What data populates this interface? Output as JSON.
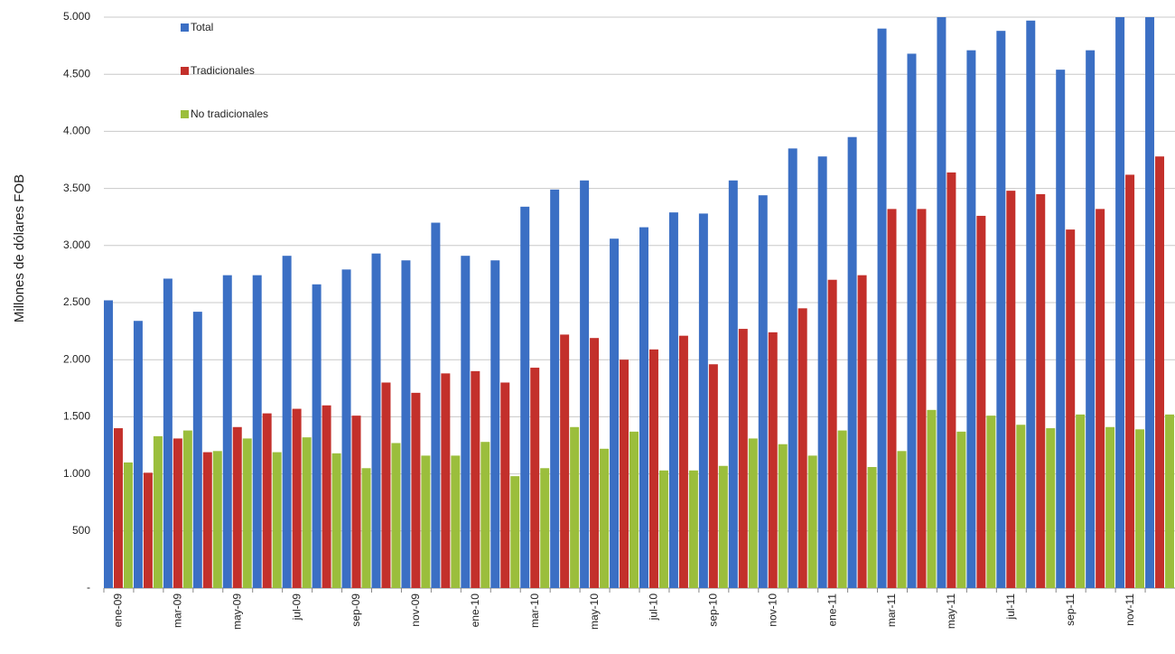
{
  "chart_data": {
    "type": "bar",
    "y_label": "Millones de dólares FOB",
    "categories": [
      "ene-09",
      null,
      "mar-09",
      null,
      "may-09",
      null,
      "jul-09",
      null,
      "sep-09",
      null,
      "nov-09",
      null,
      "ene-10",
      null,
      "mar-10",
      null,
      "may-10",
      null,
      "jul-10",
      null,
      "sep-10",
      null,
      "nov-10",
      null,
      "ene-11",
      null,
      "mar-11",
      null,
      "may-11",
      null,
      "jul-11",
      null,
      "sep-11",
      null,
      "nov-11",
      null
    ],
    "series": [
      {
        "name": "Total",
        "color": "#3b6fc4",
        "values": [
          2520,
          2340,
          2710,
          2420,
          2740,
          2740,
          2910,
          2660,
          2790,
          2930,
          2870,
          3200,
          2910,
          2870,
          3340,
          3490,
          3570,
          3060,
          3160,
          3290,
          3280,
          3570,
          3440,
          3850,
          3780,
          3950,
          4900,
          4680,
          5000,
          4710,
          4880,
          4970,
          4540,
          4710,
          5000,
          5000
        ]
      },
      {
        "name": "Tradicionales",
        "color": "#c3302b",
        "values": [
          1400,
          1010,
          1310,
          1190,
          1410,
          1530,
          1570,
          1600,
          1510,
          1800,
          1710,
          1880,
          1900,
          1800,
          1930,
          2220,
          2190,
          2000,
          2090,
          2210,
          1960,
          2270,
          2240,
          2450,
          2700,
          2740,
          3320,
          3320,
          3640,
          3260,
          3480,
          3450,
          3140,
          3320,
          3620,
          3780
        ]
      },
      {
        "name": "No tradicionales",
        "color": "#9bbe3c",
        "values": [
          1100,
          1330,
          1380,
          1200,
          1310,
          1190,
          1320,
          1180,
          1050,
          1270,
          1160,
          1160,
          1280,
          980,
          1050,
          1410,
          1220,
          1370,
          1030,
          1030,
          1070,
          1310,
          1260,
          1160,
          1380,
          1060,
          1200,
          1560,
          1370,
          1510,
          1430,
          1400,
          1520,
          1410,
          1390,
          1520
        ]
      }
    ],
    "ylim": [
      0,
      5000
    ],
    "yticks": [
      {
        "value": 0,
        "label": "-"
      },
      500,
      {
        "value": 1000,
        "label": "1.000"
      },
      {
        "value": 1500,
        "label": "1.500"
      },
      {
        "value": 2000,
        "label": "2.000"
      },
      {
        "value": 2500,
        "label": "2.500"
      },
      {
        "value": 3000,
        "label": "3.000"
      },
      {
        "value": 3500,
        "label": "3.500"
      },
      {
        "value": 4000,
        "label": "4.000"
      },
      {
        "value": 4500,
        "label": "4.500"
      },
      {
        "value": 5000,
        "label": "5.000"
      }
    ],
    "grid": true
  }
}
